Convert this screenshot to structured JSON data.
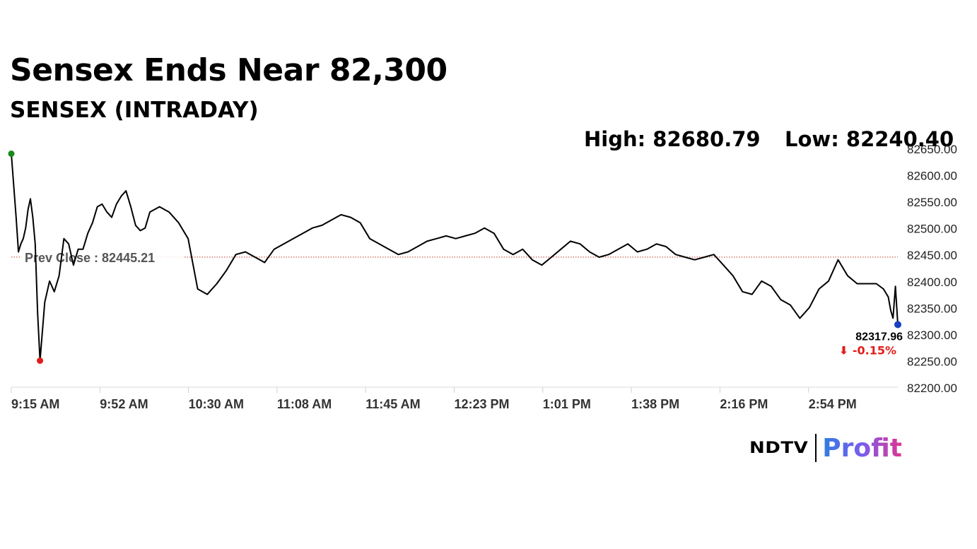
{
  "header": {
    "title": "Sensex Ends Near 82,300",
    "subtitle": "SENSEX (INTRADAY)"
  },
  "stats": {
    "high": "High: 82680.79",
    "low": "Low: 82240.40"
  },
  "chart_data": {
    "type": "line",
    "title": "Sensex Ends Near 82,300",
    "subtitle": "SENSEX (INTRADAY)",
    "xlabel": "",
    "ylabel": "",
    "ylim": [
      82200,
      82650
    ],
    "y_ticks": [
      "82650.00",
      "82600.00",
      "82550.00",
      "82500.00",
      "82450.00",
      "82400.00",
      "82350.00",
      "82300.00",
      "82250.00",
      "82200.00"
    ],
    "x_ticks": [
      "9:15 AM",
      "9:52 AM",
      "10:30 AM",
      "11:08 AM",
      "11:45 AM",
      "12:23 PM",
      "1:01 PM",
      "1:38 PM",
      "2:16 PM",
      "2:54 PM"
    ],
    "grid": false,
    "legend": "none",
    "prev_close": 82445.21,
    "prev_close_label": "Prev Close : 82445.21",
    "high": 82680.79,
    "low": 82240.4,
    "last_value": 82317.96,
    "last_value_label": "82317.96",
    "change_label": "⬇ -0.15%",
    "series": [
      {
        "x_minutes": [
          0,
          1,
          2,
          3,
          4,
          5,
          6,
          7,
          8,
          9,
          10,
          11,
          12,
          14,
          16,
          18,
          20,
          22,
          24,
          26,
          28,
          30,
          32,
          34,
          36,
          38,
          40,
          42,
          44,
          46,
          48,
          50,
          52,
          54,
          56,
          58,
          62,
          66,
          70,
          74,
          78,
          82,
          86,
          90,
          94,
          98,
          102,
          106,
          110,
          114,
          118,
          122,
          126,
          130,
          134,
          138,
          142,
          146,
          150,
          154,
          158,
          162,
          166,
          170,
          174,
          178,
          182,
          186,
          190,
          194,
          198,
          202,
          206,
          210,
          214,
          218,
          222,
          226,
          230,
          234,
          238,
          242,
          246,
          250,
          254,
          258,
          262,
          266,
          270,
          274,
          278,
          282,
          286,
          290,
          294,
          298,
          302,
          306,
          310,
          314,
          318,
          322,
          326,
          330,
          334,
          338,
          342,
          346,
          350,
          354,
          358,
          362,
          365,
          367,
          368,
          369,
          370,
          371
        ],
        "values": [
          82640,
          82580,
          82520,
          82455,
          82470,
          82480,
          82500,
          82535,
          82555,
          82520,
          82470,
          82340,
          82250,
          82360,
          82400,
          82380,
          82410,
          82480,
          82470,
          82430,
          82460,
          82460,
          82490,
          82510,
          82540,
          82545,
          82530,
          82520,
          82545,
          82560,
          82570,
          82540,
          82505,
          82495,
          82500,
          82530,
          82540,
          82530,
          82510,
          82480,
          82385,
          82375,
          82395,
          82420,
          82450,
          82455,
          82445,
          82435,
          82460,
          82470,
          82480,
          82490,
          82500,
          82505,
          82515,
          82525,
          82520,
          82510,
          82480,
          82470,
          82460,
          82450,
          82455,
          82465,
          82475,
          82480,
          82485,
          82480,
          82485,
          82490,
          82500,
          82490,
          82460,
          82450,
          82460,
          82440,
          82430,
          82445,
          82460,
          82475,
          82470,
          82455,
          82445,
          82450,
          82460,
          82470,
          82455,
          82460,
          82470,
          82465,
          82450,
          82445,
          82440,
          82445,
          82450,
          82430,
          82410,
          82380,
          82375,
          82400,
          82390,
          82365,
          82355,
          82330,
          82350,
          82385,
          82400,
          82440,
          82410,
          82395,
          82395,
          82395,
          82385,
          82370,
          82345,
          82330,
          82390,
          82318
        ]
      }
    ]
  },
  "logo": {
    "brand1": "NDTV",
    "brand2": "Profit"
  },
  "colors": {
    "line": "#000000",
    "prev_close_line": "#c0392b",
    "open_marker": "#1a8a1a",
    "low_marker": "#e21b1b",
    "last_marker": "#1a3fbf",
    "change_text": "#e21b1b"
  }
}
